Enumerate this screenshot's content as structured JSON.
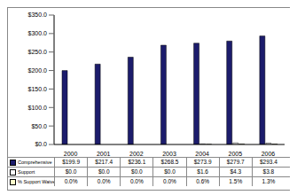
{
  "chart_data": {
    "type": "bar",
    "categories": [
      "2000",
      "2001",
      "2002",
      "2003",
      "2004",
      "2005",
      "2006"
    ],
    "series": [
      {
        "name": "Comprehensive",
        "color": "#1c1c6c",
        "values": [
          199.9,
          217.4,
          236.1,
          268.5,
          273.9,
          279.7,
          293.4
        ],
        "value_labels": [
          "$199.9",
          "$217.4",
          "$236.1",
          "$268.5",
          "$273.9",
          "$279.7",
          "$293.4"
        ]
      },
      {
        "name": "Support",
        "color": "#ffffff",
        "values": [
          0,
          0,
          0,
          0,
          1.6,
          4.3,
          3.8
        ],
        "value_labels": [
          "$0.0",
          "$0.0",
          "$0.0",
          "$0.0",
          "$1.6",
          "$4.3",
          "$3.8"
        ]
      },
      {
        "name": "% Support Waiver",
        "color": "#ffffcc",
        "values": [
          0,
          0,
          0,
          0,
          0.6,
          1.5,
          1.3
        ],
        "value_labels": [
          "0.0%",
          "0.0%",
          "0.0%",
          "0.0%",
          "0.6%",
          "1.5%",
          "1.3%"
        ]
      }
    ],
    "ylim": [
      0,
      350
    ],
    "yticks": [
      {
        "value": 0,
        "label": "$0.0"
      },
      {
        "value": 50,
        "label": "$50.0"
      },
      {
        "value": 100,
        "label": "$100.0"
      },
      {
        "value": 150,
        "label": "$150.0"
      },
      {
        "value": 200,
        "label": "$200.0"
      },
      {
        "value": 250,
        "label": "$250.0"
      },
      {
        "value": 300,
        "label": "$300.0"
      },
      {
        "value": 350,
        "label": "$350.0"
      }
    ],
    "grid": false
  }
}
